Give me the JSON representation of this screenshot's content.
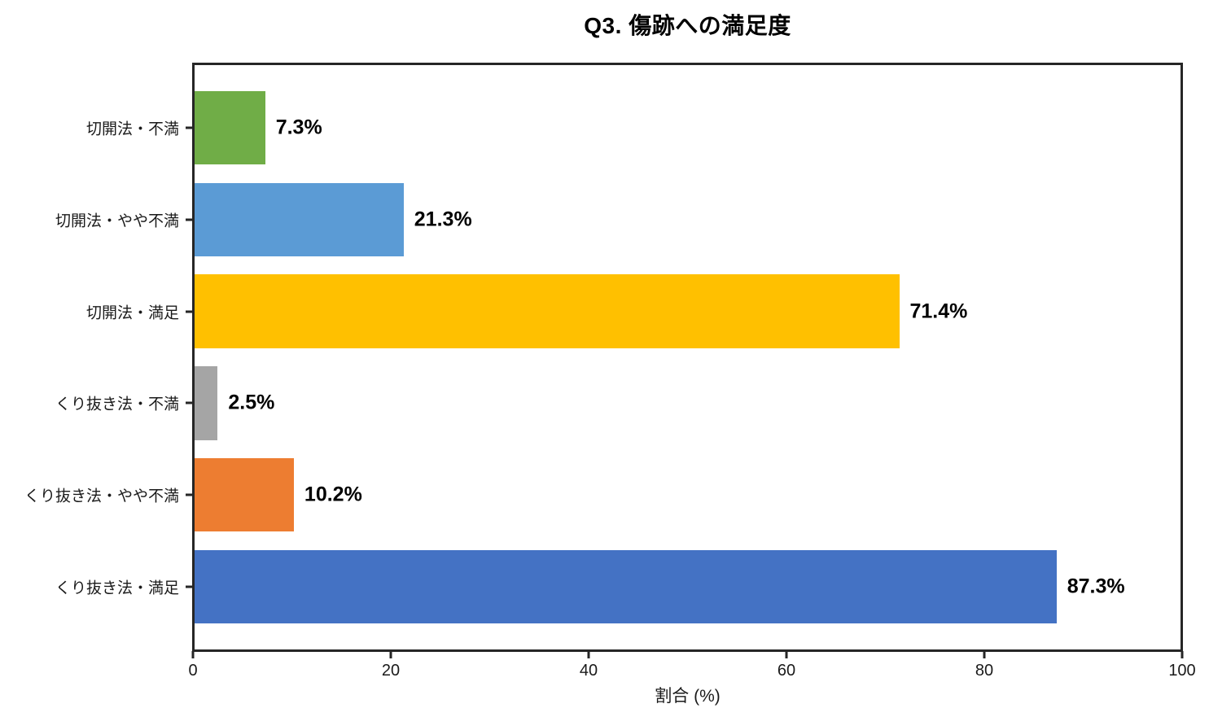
{
  "chart_data": {
    "type": "bar",
    "orientation": "horizontal",
    "title": "Q3. 傷跡への満足度",
    "xlabel": "割合 (%)",
    "ylabel": "",
    "xlim": [
      0,
      100
    ],
    "xticks": [
      "0",
      "20",
      "40",
      "60",
      "80",
      "100"
    ],
    "grid": false,
    "legend": false,
    "categories": [
      "切開法・不満",
      "切開法・やや不満",
      "切開法・満足",
      "くり抜き法・不満",
      "くり抜き法・やや不満",
      "くり抜き法・満足"
    ],
    "values": [
      7.3,
      21.3,
      71.4,
      2.5,
      10.2,
      87.3
    ],
    "value_labels": [
      "7.3%",
      "21.3%",
      "71.4%",
      "2.5%",
      "10.2%",
      "87.3%"
    ],
    "bar_colors": [
      "#70AD47",
      "#5B9BD5",
      "#FFC000",
      "#A5A5A5",
      "#ED7D31",
      "#4472C4"
    ]
  },
  "colors": {
    "background": "#FFFFFF",
    "frame": "#262626",
    "text": "#000000"
  }
}
